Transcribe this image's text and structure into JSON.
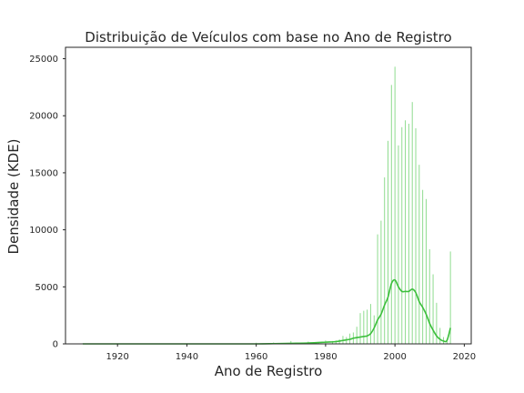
{
  "chart_data": {
    "type": "bar",
    "title": "Distribuição de Veículos com base no Ano de Registro",
    "xlabel": "Ano de Registro",
    "ylabel": "Densidade (KDE)",
    "xlim": [
      1905,
      2022
    ],
    "ylim": [
      0,
      26000
    ],
    "xticks": [
      1920,
      1940,
      1960,
      1980,
      2000,
      2020
    ],
    "yticks": [
      0,
      5000,
      10000,
      15000,
      20000,
      25000
    ],
    "grid": false,
    "colors": {
      "bars": "#8fdc8f",
      "kde": "#3cbf3c",
      "frame": "#262626"
    },
    "series": [
      {
        "kind": "histogram",
        "x": [
          1910,
          1960,
          1965,
          1970,
          1975,
          1978,
          1980,
          1982,
          1983,
          1984,
          1985,
          1986,
          1987,
          1988,
          1989,
          1990,
          1991,
          1992,
          1993,
          1994,
          1995,
          1996,
          1997,
          1998,
          1999,
          2000,
          2001,
          2002,
          2003,
          2004,
          2005,
          2006,
          2007,
          2008,
          2009,
          2010,
          2011,
          2012,
          2013,
          2014,
          2015,
          2016
        ],
        "values": [
          50,
          100,
          120,
          250,
          200,
          150,
          300,
          250,
          300,
          400,
          700,
          600,
          900,
          1000,
          1500,
          2700,
          2900,
          3000,
          3500,
          2500,
          9600,
          10800,
          14600,
          17800,
          22700,
          24300,
          17400,
          19000,
          19600,
          19300,
          21200,
          18900,
          15700,
          13500,
          12700,
          8300,
          6100,
          3600,
          1400,
          600,
          400,
          8100
        ]
      },
      {
        "kind": "kde",
        "x": [
          1910,
          1920,
          1930,
          1940,
          1950,
          1960,
          1965,
          1970,
          1975,
          1980,
          1983,
          1985,
          1987,
          1988,
          1989,
          1990,
          1991,
          1992,
          1993,
          1994,
          1995,
          1996,
          1997,
          1998,
          1999,
          2000,
          2001,
          2002,
          2003,
          2004,
          2005,
          2006,
          2007,
          2008,
          2009,
          2010,
          2011,
          2012,
          2013,
          2014,
          2015,
          2016
        ],
        "values": [
          0,
          0,
          0,
          0,
          0,
          0,
          20,
          50,
          80,
          150,
          200,
          300,
          400,
          500,
          550,
          600,
          650,
          700,
          900,
          1400,
          2100,
          2600,
          3400,
          4100,
          5300,
          5600,
          5000,
          4600,
          4600,
          4600,
          4800,
          4500,
          3700,
          3200,
          2600,
          1800,
          1200,
          700,
          400,
          250,
          300,
          1400
        ]
      }
    ]
  }
}
